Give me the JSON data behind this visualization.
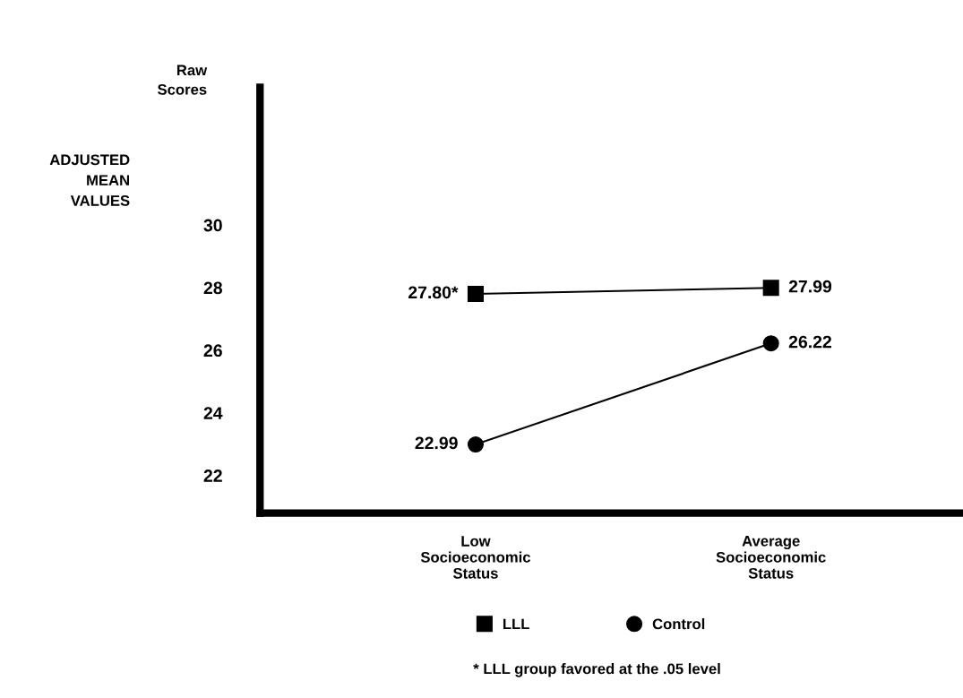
{
  "chart_data": {
    "type": "line",
    "ylabel": "ADJUSTED\nMEAN\nVALUES",
    "categories": [
      "Low\nSocioeconomic\nStatus",
      "Average\nSocioeconomic\nStatus"
    ],
    "series": [
      {
        "name": "LLL",
        "color": "#000000",
        "marker": "square",
        "values": [
          27.8,
          27.99
        ],
        "value_labels": [
          "27.80*",
          "27.99"
        ]
      },
      {
        "name": "Control",
        "color": "#000000",
        "marker": "circle",
        "values": [
          22.99,
          26.22
        ],
        "value_labels": [
          "22.99",
          "26.22"
        ]
      }
    ],
    "ylim": [
      20.8,
      34.4
    ],
    "yticks": [
      22,
      24,
      26,
      28,
      30
    ],
    "grid": false,
    "legend": "bottom",
    "annotations": [
      "Raw Scores",
      "* LLL group favored at the .05 level"
    ]
  }
}
